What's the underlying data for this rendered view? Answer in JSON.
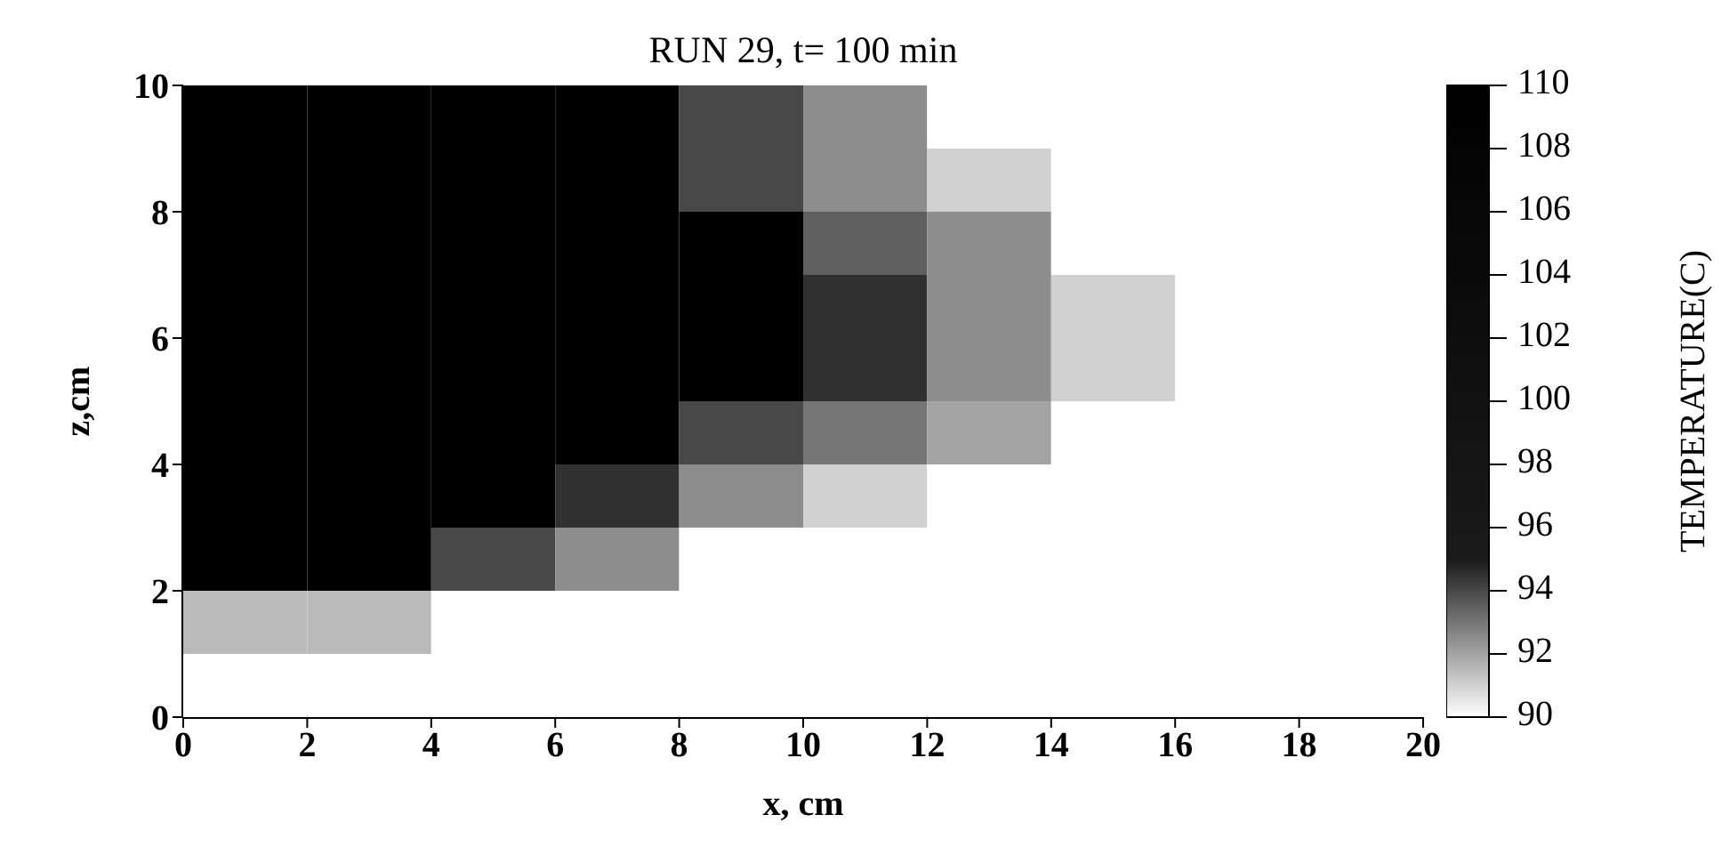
{
  "chart_data": {
    "type": "heatmap",
    "title": "RUN 29, t= 100 min",
    "xlabel": "x, cm",
    "ylabel": "z,cm",
    "clabel": "TEMPERATURE(C)",
    "x": [
      1,
      3,
      5,
      7,
      9,
      11,
      13,
      15,
      17,
      19
    ],
    "y": [
      9.5,
      8.5,
      7.5,
      6.5,
      5.5,
      4.5,
      3.5,
      2.5,
      1.5,
      0.5
    ],
    "xlim": [
      0,
      20
    ],
    "xticks": [
      0,
      2,
      4,
      6,
      8,
      10,
      12,
      14,
      16,
      18,
      20
    ],
    "ylim": [
      0,
      10
    ],
    "yticks": [
      0,
      2,
      4,
      6,
      8,
      10
    ],
    "clim": [
      90,
      110
    ],
    "cticks": [
      90,
      92,
      94,
      96,
      98,
      100,
      102,
      104,
      106,
      108,
      110
    ],
    "cells": [
      [
        110,
        110,
        110,
        110,
        94,
        92.5,
        90,
        90,
        90,
        90
      ],
      [
        110,
        110,
        110,
        110,
        94,
        92.5,
        91,
        90,
        90,
        90
      ],
      [
        110,
        110,
        110,
        110,
        110,
        93.5,
        92.5,
        90,
        90,
        90
      ],
      [
        110,
        110,
        110,
        110,
        110,
        94.5,
        92.5,
        91,
        90,
        90
      ],
      [
        110,
        110,
        110,
        110,
        110,
        94.5,
        92.5,
        91,
        90,
        90
      ],
      [
        110,
        110,
        110,
        110,
        94,
        93,
        92,
        90,
        90,
        90
      ],
      [
        110,
        110,
        110,
        94.5,
        92.5,
        91,
        90,
        90,
        90,
        90
      ],
      [
        110,
        110,
        94,
        92.5,
        90,
        90,
        90,
        90,
        90,
        90
      ],
      [
        91.5,
        91.5,
        90,
        90,
        90,
        90,
        90,
        90,
        90,
        90
      ],
      [
        90,
        90,
        90,
        90,
        90,
        90,
        90,
        90,
        90,
        90
      ]
    ]
  }
}
